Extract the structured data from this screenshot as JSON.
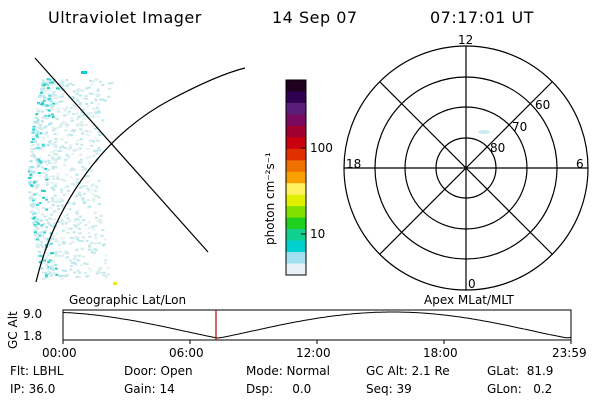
{
  "header": {
    "instrument": "Ultraviolet Imager",
    "date": "14 Sep 07",
    "time": "07:17:01 UT"
  },
  "colorbar": {
    "unit_label": "photon cm⁻²s⁻¹",
    "tick_labels": [
      "100",
      "10"
    ],
    "colors_top_to_bottom": [
      "#200020",
      "#300050",
      "#5a1e78",
      "#7a0a60",
      "#a00030",
      "#c80010",
      "#e03000",
      "#f07000",
      "#f8a000",
      "#fff060",
      "#e0f000",
      "#80e000",
      "#20d020",
      "#10d090",
      "#00d0d0",
      "#a0e0f0",
      "#e8f0f8"
    ]
  },
  "polar_plot": {
    "mlt_labels": {
      "top": "12",
      "right": "6",
      "bottom": "0",
      "left": "18"
    },
    "lat_labels": [
      "60",
      "70",
      "80"
    ]
  },
  "timeline": {
    "left_label": "Geographic Lat/Lon",
    "right_label": "Apex MLat/MLT",
    "axis_title": "GC Alt",
    "y_ticks": [
      "9.0",
      "1.8"
    ],
    "x_ticks": [
      "00:00",
      "06:00",
      "12:00",
      "18:00",
      "23:59"
    ]
  },
  "status": {
    "flt": "Flt: LBHL",
    "door": "Door: Open",
    "mode": "Mode: Normal",
    "gc_alt": "GC Alt: 2.1 Re",
    "glat": "GLat:  81.9",
    "ip": "IP: 36.0",
    "gain": "Gain: 14",
    "dsp": "Dsp:     0.0",
    "seq": "Seq: 39",
    "glon": "GLon:   0.2"
  }
}
